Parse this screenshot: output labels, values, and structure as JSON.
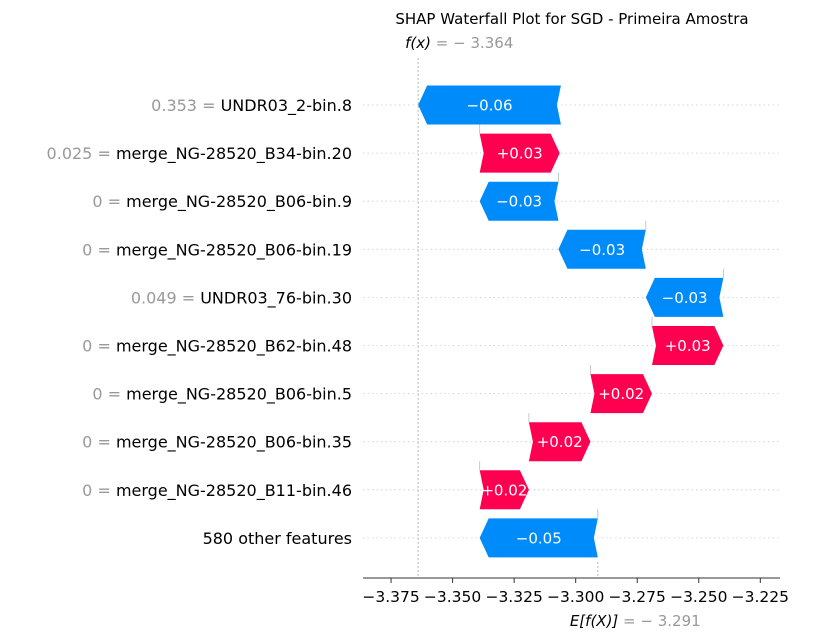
{
  "chart_data": {
    "type": "waterfall",
    "title": "SHAP Waterfall Plot for SGD - Primeira Amostra",
    "fx": {
      "prefix": "f(x)",
      "eq": " = − 3.364",
      "value": -3.364
    },
    "base": {
      "prefix": "E[f(X)]",
      "eq": " = − 3.291",
      "value": -3.291
    },
    "xlim": [
      -3.3864,
      -3.217
    ],
    "xticks": [
      -3.375,
      -3.35,
      -3.325,
      -3.3,
      -3.275,
      -3.25,
      -3.225
    ],
    "xtick_labels": [
      "−3.375",
      "−3.350",
      "−3.325",
      "−3.300",
      "−3.275",
      "−3.250",
      "−3.225"
    ],
    "colors": {
      "positive": "#ff0051",
      "negative": "#008bfb",
      "grid": "#cccccc",
      "axis": "#333333"
    },
    "features": [
      {
        "value": "0.353",
        "name": "UNDR03_2-bin.8",
        "label": "−0.06",
        "start": -3.306,
        "end": -3.364
      },
      {
        "value": "0.025",
        "name": "merge_NG-28520_B34-bin.20",
        "label": "+0.03",
        "start": -3.339,
        "end": -3.3065
      },
      {
        "value": "0",
        "name": "merge_NG-28520_B06-bin.9",
        "label": "−0.03",
        "start": -3.307,
        "end": -3.339
      },
      {
        "value": "0",
        "name": "merge_NG-28520_B06-bin.19",
        "label": "−0.03",
        "start": -3.2715,
        "end": -3.307
      },
      {
        "value": "0.049",
        "name": "UNDR03_76-bin.30",
        "label": "−0.03",
        "start": -3.24,
        "end": -3.2715
      },
      {
        "value": "0",
        "name": "merge_NG-28520_B62-bin.48",
        "label": "+0.03",
        "start": -3.269,
        "end": -3.24
      },
      {
        "value": "0",
        "name": "merge_NG-28520_B06-bin.5",
        "label": "+0.02",
        "start": -3.294,
        "end": -3.269
      },
      {
        "value": "0",
        "name": "merge_NG-28520_B06-bin.35",
        "label": "+0.02",
        "start": -3.319,
        "end": -3.294
      },
      {
        "value": "0",
        "name": "merge_NG-28520_B11-bin.46",
        "label": "+0.02",
        "start": -3.339,
        "end": -3.319
      },
      {
        "value": "",
        "name": "580 other features",
        "label": "−0.05",
        "start": -3.291,
        "end": -3.339
      }
    ]
  }
}
